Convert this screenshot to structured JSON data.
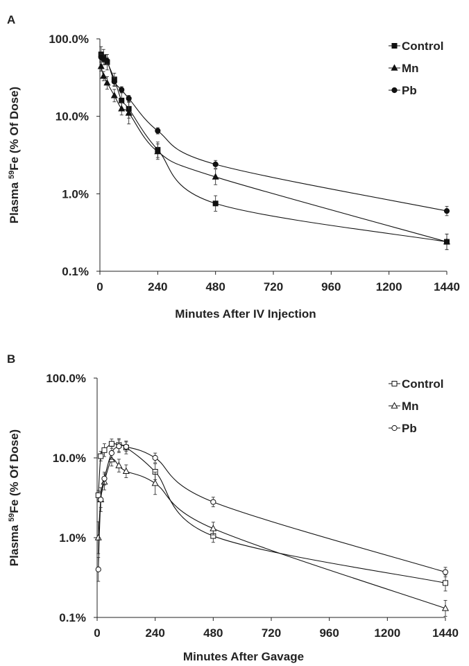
{
  "chart_data": [
    {
      "type": "line",
      "panel": "A",
      "ylabel_prefix": "Plasma ",
      "ylabel_sup": "59",
      "ylabel_suffix": "Fe (% Of Dose)",
      "xlabel": "Minutes After IV Injection",
      "yscale": "log",
      "ylim": [
        0.1,
        100
      ],
      "xlim": [
        0,
        1440
      ],
      "xticks": [
        "0",
        "240",
        "480",
        "720",
        "960",
        "1200",
        "1440"
      ],
      "yticks": [
        "0.1%",
        "1.0%",
        "10.0%",
        "100.0%"
      ],
      "legend_position": "top-right",
      "series": [
        {
          "name": "Control",
          "marker": "square",
          "filled": true,
          "x": [
            5,
            15,
            30,
            60,
            90,
            120,
            240,
            480,
            1440
          ],
          "y": [
            63,
            58,
            50,
            30,
            16,
            12.5,
            3.7,
            0.75,
            0.24
          ],
          "err": [
            0.1,
            0.1,
            0.1,
            0.08,
            0.1,
            0.12,
            0.1,
            0.1,
            0.1
          ]
        },
        {
          "name": "Mn",
          "marker": "triangle",
          "filled": true,
          "x": [
            5,
            15,
            30,
            60,
            90,
            120,
            240,
            480,
            1440
          ],
          "y": [
            44,
            33,
            27,
            18.5,
            12.5,
            11,
            3.5,
            1.65,
            0.24
          ],
          "err": [
            0.06,
            0.06,
            0.08,
            0.08,
            0.08,
            0.14,
            0.1,
            0.1,
            0.1
          ]
        },
        {
          "name": "Pb",
          "marker": "circle",
          "filled": true,
          "x": [
            5,
            15,
            30,
            60,
            90,
            120,
            240,
            480,
            1440
          ],
          "y": [
            58,
            55,
            52,
            28,
            22,
            17,
            6.5,
            2.4,
            0.6
          ],
          "err": [
            0.04,
            0.04,
            0.04,
            0.06,
            0.04,
            0.04,
            0.04,
            0.05,
            0.06
          ]
        }
      ]
    },
    {
      "type": "line",
      "panel": "B",
      "ylabel_prefix": "Plasma ",
      "ylabel_sup": "59",
      "ylabel_suffix": "Fe (% Of Dose)",
      "xlabel": "Minutes After Gavage",
      "yscale": "log",
      "ylim": [
        0.1,
        100
      ],
      "xlim": [
        0,
        1440
      ],
      "xticks": [
        "0",
        "240",
        "480",
        "720",
        "960",
        "1200",
        "1440"
      ],
      "yticks": [
        "0.1%",
        "1.0%",
        "10.0%",
        "100.0%"
      ],
      "legend_position": "top-right",
      "series": [
        {
          "name": "Control",
          "marker": "square",
          "filled": false,
          "x": [
            5,
            15,
            30,
            60,
            90,
            120,
            240,
            480,
            1440
          ],
          "y": [
            3.4,
            10.5,
            12.5,
            15,
            14.5,
            13.5,
            6.7,
            1.05,
            0.27
          ],
          "err": [
            0.06,
            0.06,
            0.08,
            0.06,
            0.08,
            0.08,
            0.1,
            0.08,
            0.1
          ]
        },
        {
          "name": "Mn",
          "marker": "triangle",
          "filled": false,
          "x": [
            5,
            15,
            30,
            60,
            90,
            120,
            240,
            480,
            1440
          ],
          "y": [
            1.0,
            3.0,
            5.0,
            9.5,
            8.0,
            6.8,
            4.8,
            1.3,
            0.13
          ],
          "err": [
            0.2,
            0.15,
            0.1,
            0.08,
            0.08,
            0.08,
            0.14,
            0.08,
            0.1
          ]
        },
        {
          "name": "Pb",
          "marker": "circle",
          "filled": false,
          "x": [
            5,
            15,
            30,
            60,
            90,
            120,
            240,
            480,
            1440
          ],
          "y": [
            0.4,
            3.0,
            5.5,
            11.5,
            14,
            13.8,
            10,
            2.8,
            0.37
          ],
          "err": [
            0.15,
            0.1,
            0.08,
            0.08,
            0.08,
            0.06,
            0.06,
            0.06,
            0.06
          ]
        }
      ]
    }
  ]
}
